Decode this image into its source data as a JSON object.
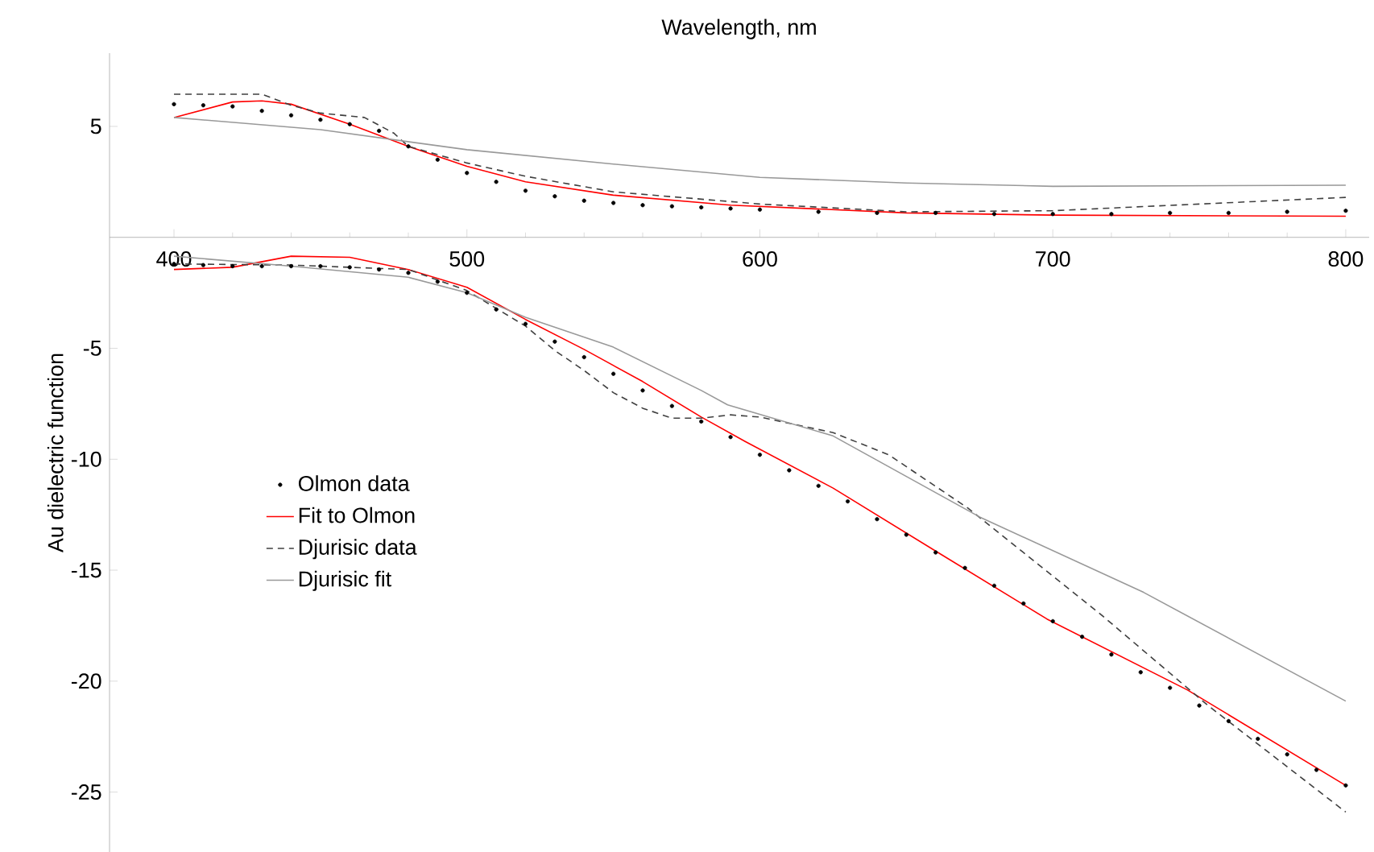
{
  "chart_data": {
    "type": "line",
    "xlabel": "Wavelength, nm",
    "ylabel": "Au dielectric function",
    "xlim": [
      378,
      808
    ],
    "ylim": [
      -27.7,
      8.3
    ],
    "xticks": [
      400,
      500,
      600,
      700,
      800
    ],
    "yticks": [
      -25,
      -20,
      -15,
      -10,
      -5,
      5
    ],
    "legend": "left",
    "grid": false,
    "series": [
      {
        "name": "Olmon data",
        "type": "scatter",
        "marker": "circle",
        "color": "#000000",
        "x": [
          400,
          410,
          420,
          430,
          440,
          450,
          460,
          470,
          480,
          490,
          500,
          510,
          520,
          530,
          540,
          550,
          560,
          570,
          580,
          590,
          600,
          610,
          620,
          630,
          640,
          650,
          660,
          670,
          680,
          690,
          700,
          710,
          720,
          730,
          740,
          750,
          760,
          770,
          780,
          790,
          800
        ],
        "values": [
          -1.2,
          -1.25,
          -1.3,
          -1.3,
          -1.3,
          -1.3,
          -1.35,
          -1.45,
          -1.6,
          -2.0,
          -2.5,
          -3.25,
          -3.9,
          -4.7,
          -5.4,
          -6.15,
          -6.9,
          -7.6,
          -8.3,
          -9.0,
          -9.8,
          -10.5,
          -11.2,
          -11.9,
          -12.7,
          -13.4,
          -14.2,
          -14.9,
          -15.7,
          -16.5,
          -17.3,
          -18.0,
          -18.8,
          -19.6,
          -20.3,
          -21.1,
          -21.8,
          -22.6,
          -23.3,
          -24.0,
          -24.7
        ]
      },
      {
        "name": "Fit to Olmon",
        "line_style": "solid",
        "color": "#ff0000",
        "x": [
          400,
          420,
          440,
          460,
          480,
          500,
          520,
          540,
          560,
          580,
          595,
          625,
          662,
          698,
          746,
          800
        ],
        "values": [
          -1.45,
          -1.35,
          -0.85,
          -0.9,
          -1.45,
          -2.25,
          -3.7,
          -5.05,
          -6.5,
          -8.1,
          -9.2,
          -11.3,
          -14.3,
          -17.2,
          -20.4,
          -24.7
        ]
      },
      {
        "name": "Djurisic data",
        "line_style": "dashed",
        "color": "#404040",
        "x": [
          400,
          440,
          480,
          500,
          520,
          530,
          540,
          550,
          560,
          570,
          580,
          590,
          600,
          625,
          644,
          671,
          716,
          753,
          800
        ],
        "values": [
          -1.2,
          -1.25,
          -1.45,
          -2.4,
          -4.0,
          -5.1,
          -6.0,
          -7.0,
          -7.7,
          -8.15,
          -8.15,
          -8.0,
          -8.1,
          -8.8,
          -9.8,
          -12.2,
          -16.95,
          -21.1,
          -25.9
        ]
      },
      {
        "name": "Djurisic fit",
        "line_style": "solid",
        "color": "#999999",
        "x": [
          400,
          440,
          480,
          500,
          520,
          550,
          580,
          589,
          625,
          675,
          731,
          800
        ],
        "values": [
          -0.85,
          -1.3,
          -1.8,
          -2.5,
          -3.6,
          -4.95,
          -6.9,
          -7.55,
          -8.95,
          -12.6,
          -16.0,
          -20.9
        ]
      },
      {
        "type": "scatter",
        "marker": "circle",
        "color": "#000000",
        "x": [
          400,
          410,
          420,
          430,
          440,
          450,
          460,
          470,
          480,
          490,
          500,
          510,
          520,
          530,
          540,
          550,
          560,
          570,
          580,
          590,
          600,
          620,
          640,
          660,
          680,
          700,
          720,
          740,
          760,
          780,
          800
        ],
        "values": [
          6.0,
          5.95,
          5.9,
          5.7,
          5.5,
          5.3,
          5.1,
          4.8,
          4.1,
          3.5,
          2.9,
          2.5,
          2.1,
          1.85,
          1.65,
          1.55,
          1.45,
          1.4,
          1.35,
          1.3,
          1.25,
          1.15,
          1.1,
          1.1,
          1.05,
          1.05,
          1.05,
          1.1,
          1.1,
          1.15,
          1.2
        ]
      },
      {
        "line_style": "solid",
        "color": "#ff0000",
        "x": [
          400,
          420,
          430,
          440,
          460,
          480,
          500,
          520,
          550,
          590,
          650,
          700,
          800
        ],
        "values": [
          5.4,
          6.1,
          6.15,
          6.0,
          5.1,
          4.1,
          3.2,
          2.5,
          1.9,
          1.45,
          1.1,
          1.0,
          0.95
        ]
      },
      {
        "line_style": "dashed",
        "color": "#404040",
        "x": [
          400,
          430,
          440,
          450,
          465,
          475,
          480,
          500,
          520,
          550,
          600,
          650,
          700,
          750,
          800
        ],
        "values": [
          6.45,
          6.45,
          5.95,
          5.6,
          5.4,
          4.7,
          4.1,
          3.35,
          2.75,
          2.05,
          1.5,
          1.15,
          1.2,
          1.5,
          1.8
        ]
      },
      {
        "line_style": "solid",
        "color": "#999999",
        "x": [
          400,
          450,
          500,
          550,
          600,
          650,
          700,
          800
        ],
        "values": [
          5.4,
          4.85,
          3.95,
          3.3,
          2.7,
          2.45,
          2.3,
          2.35
        ]
      }
    ]
  }
}
